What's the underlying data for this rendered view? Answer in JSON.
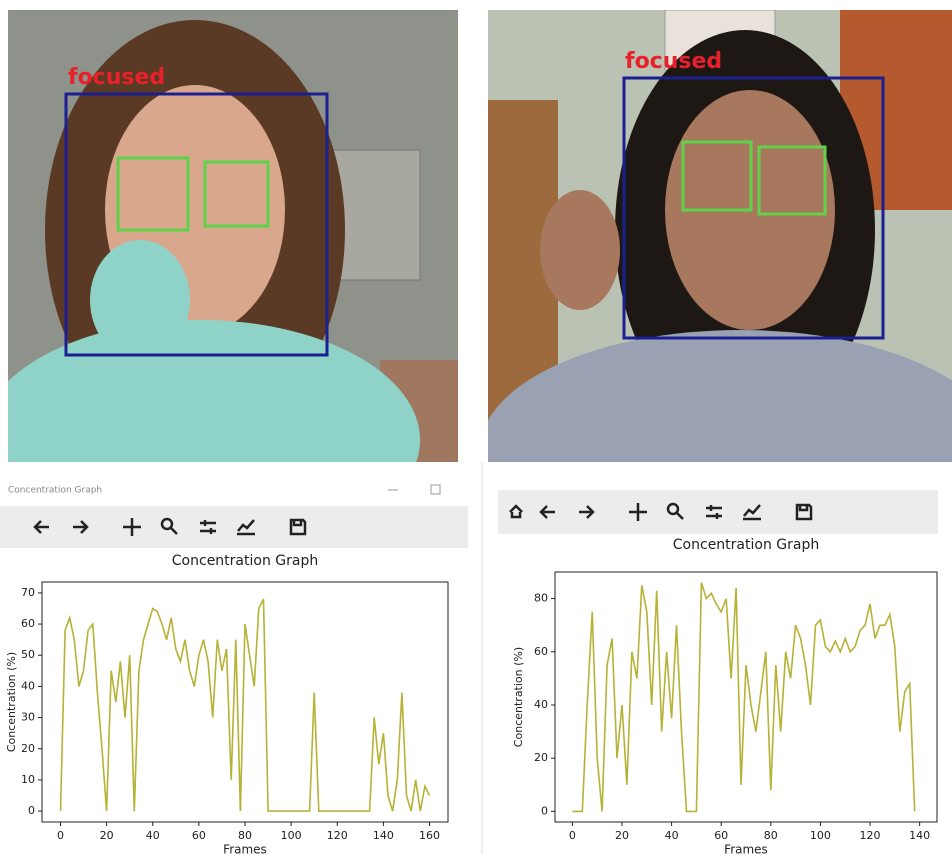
{
  "photos": [
    {
      "label": "focused"
    },
    {
      "label": "focused"
    }
  ],
  "windows": [
    {
      "title": "Concentration Graph"
    }
  ],
  "chart_data": [
    {
      "type": "line",
      "title": "Concentration Graph",
      "x_label": "Frames",
      "y_label": "Concentration (%)",
      "color": "#b5b236",
      "x": [
        0,
        2,
        4,
        6,
        8,
        10,
        12,
        14,
        16,
        18,
        20,
        22,
        24,
        26,
        28,
        30,
        32,
        34,
        36,
        38,
        40,
        42,
        44,
        46,
        48,
        50,
        52,
        54,
        56,
        58,
        60,
        62,
        64,
        66,
        68,
        70,
        72,
        74,
        76,
        78,
        80,
        82,
        84,
        86,
        88,
        90,
        92,
        94,
        96,
        98,
        100,
        102,
        104,
        106,
        108,
        110,
        112,
        114,
        116,
        118,
        120,
        122,
        124,
        126,
        128,
        130,
        132,
        134,
        136,
        138,
        140,
        142,
        144,
        146,
        148,
        150,
        152,
        154,
        156,
        158,
        160
      ],
      "values": [
        0,
        58,
        62,
        55,
        40,
        45,
        58,
        60,
        38,
        20,
        0,
        45,
        35,
        48,
        30,
        50,
        0,
        45,
        55,
        60,
        65,
        64,
        60,
        55,
        62,
        52,
        48,
        55,
        45,
        40,
        50,
        55,
        48,
        30,
        55,
        45,
        52,
        10,
        55,
        0,
        60,
        50,
        40,
        65,
        68,
        0,
        0,
        0,
        0,
        0,
        0,
        0,
        0,
        0,
        0,
        38,
        0,
        0,
        0,
        0,
        0,
        0,
        0,
        0,
        0,
        0,
        0,
        0,
        30,
        15,
        25,
        5,
        0,
        10,
        38,
        5,
        0,
        10,
        0,
        8,
        5
      ],
      "xlim": [
        -8,
        168
      ],
      "ylim": [
        -3.5,
        73.5
      ],
      "xticks": [
        0,
        20,
        40,
        60,
        80,
        100,
        120,
        140,
        160
      ],
      "yticks": [
        0,
        10,
        20,
        30,
        40,
        50,
        60,
        70
      ]
    },
    {
      "type": "line",
      "title": "Concentration Graph",
      "x_label": "Frames",
      "y_label": "Concentration (%)",
      "color": "#b5b236",
      "x": [
        0,
        2,
        4,
        6,
        8,
        10,
        12,
        14,
        16,
        18,
        20,
        22,
        24,
        26,
        28,
        30,
        32,
        34,
        36,
        38,
        40,
        42,
        44,
        46,
        48,
        50,
        52,
        54,
        56,
        58,
        60,
        62,
        64,
        66,
        68,
        70,
        72,
        74,
        76,
        78,
        80,
        82,
        84,
        86,
        88,
        90,
        92,
        94,
        96,
        98,
        100,
        102,
        104,
        106,
        108,
        110,
        112,
        114,
        116,
        118,
        120,
        122,
        124,
        126,
        128,
        130,
        132,
        134,
        136,
        138
      ],
      "values": [
        0,
        0,
        0,
        40,
        75,
        20,
        0,
        55,
        65,
        20,
        40,
        10,
        60,
        50,
        85,
        75,
        40,
        83,
        30,
        60,
        35,
        70,
        30,
        0,
        0,
        0,
        86,
        80,
        82,
        78,
        75,
        80,
        50,
        84,
        10,
        55,
        40,
        30,
        45,
        60,
        8,
        55,
        30,
        60,
        50,
        70,
        65,
        55,
        40,
        70,
        72,
        62,
        60,
        64,
        60,
        65,
        60,
        62,
        68,
        70,
        78,
        65,
        70,
        70,
        74,
        62,
        30,
        45,
        48,
        0
      ],
      "xlim": [
        -7,
        147
      ],
      "ylim": [
        -4,
        90
      ],
      "xticks": [
        0,
        20,
        40,
        60,
        80,
        100,
        120,
        140
      ],
      "yticks": [
        0,
        20,
        40,
        60,
        80
      ]
    }
  ]
}
